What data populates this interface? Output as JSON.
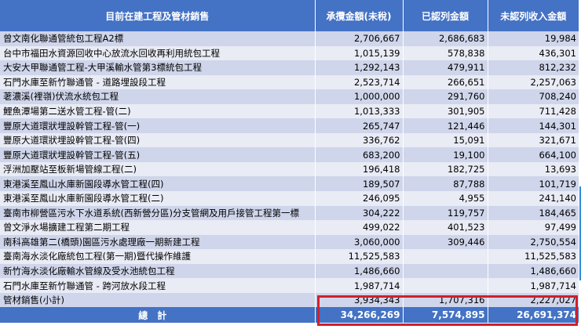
{
  "header": {
    "col0": "目前在建工程及管材銷售",
    "col1": "承攬金額(未稅)",
    "col2": "已認列金額",
    "col3": "未認列收入金額"
  },
  "rows": [
    {
      "name": "曾文南化聯通管統包工程A2標",
      "contract": "2,706,667",
      "recognized": "2,686,683",
      "unrecognized": "19,984"
    },
    {
      "name": "台中市福田水資源回收中心放流水回收再利用統包工程",
      "contract": "1,015,139",
      "recognized": "578,838",
      "unrecognized": "436,301"
    },
    {
      "name": "大安大甲聯通管工程-大甲溪輸水管第3標統包工程",
      "contract": "1,292,143",
      "recognized": "479,911",
      "unrecognized": "812,232"
    },
    {
      "name": "石門水庫至新竹聯通管 - 道路埋設段工程",
      "contract": "2,523,714",
      "recognized": "266,651",
      "unrecognized": "2,257,063"
    },
    {
      "name": "荖濃溪(裡嶺)伏流水統包工程",
      "contract": "1,000,000",
      "recognized": "291,760",
      "unrecognized": "708,240"
    },
    {
      "name": "鯉魚潭場第二送水管工程-管(二)",
      "contract": "1,013,333",
      "recognized": "301,905",
      "unrecognized": "711,428"
    },
    {
      "name": "豐原大道環狀埋設幹管工程-管(一)",
      "contract": "265,747",
      "recognized": "121,446",
      "unrecognized": "144,301"
    },
    {
      "name": "豐原大道環狀埋設幹管工程-管(四)",
      "contract": "336,762",
      "recognized": "15,091",
      "unrecognized": "321,671"
    },
    {
      "name": "豐原大道環狀埋設幹管工程-管(五)",
      "contract": "683,200",
      "recognized": "19,100",
      "unrecognized": "664,100"
    },
    {
      "name": "浮洲加壓站至板新場管線工程(二)",
      "contract": "196,418",
      "recognized": "182,725",
      "unrecognized": "13,693"
    },
    {
      "name": "東港溪至鳳山水庫新園段導水管工程(四)",
      "contract": "189,507",
      "recognized": "87,788",
      "unrecognized": "101,719"
    },
    {
      "name": "東港溪至鳳山水庫新園段導水管工程(二)",
      "contract": "246,095",
      "recognized": "4,955",
      "unrecognized": "241,140"
    },
    {
      "name": "臺南市柳營區污水下水道系統(西新營分區)分支管網及用戶接管工程第一標",
      "contract": "304,222",
      "recognized": "119,757",
      "unrecognized": "184,465"
    },
    {
      "name": "曾文淨水場擴建工程第二期工程",
      "contract": "499,022",
      "recognized": "401,523",
      "unrecognized": "97,499"
    },
    {
      "name": "南科高雄第二(橋頭)園區污水處理廠一期新建工程",
      "contract": "3,060,000",
      "recognized": "309,446",
      "unrecognized": "2,750,554"
    },
    {
      "name": "臺南海水淡化廠統包工程(第一期)暨代操作維護",
      "contract": "11,525,583",
      "recognized": "",
      "unrecognized": "11,525,583"
    },
    {
      "name": "新竹海水淡化廠輸水管線及受水池統包工程",
      "contract": "1,486,660",
      "recognized": "",
      "unrecognized": "1,486,660"
    },
    {
      "name": "石門水庫至新竹聯通管 - 跨河放水段工程",
      "contract": "1,987,714",
      "recognized": "",
      "unrecognized": "1,987,714"
    },
    {
      "name": "管材銷售(小計)",
      "contract": "3,934,343",
      "recognized": "1,707,316",
      "unrecognized": "2,227,027"
    }
  ],
  "total": {
    "label": "總計",
    "contract": "34,266,269",
    "recognized": "7,574,895",
    "unrecognized": "26,691,374"
  },
  "colors": {
    "header_bg": "#4472c4",
    "row_dark": "#cfd5ea",
    "row_light": "#e9ebf5",
    "highlight_border": "#d21f2a"
  }
}
